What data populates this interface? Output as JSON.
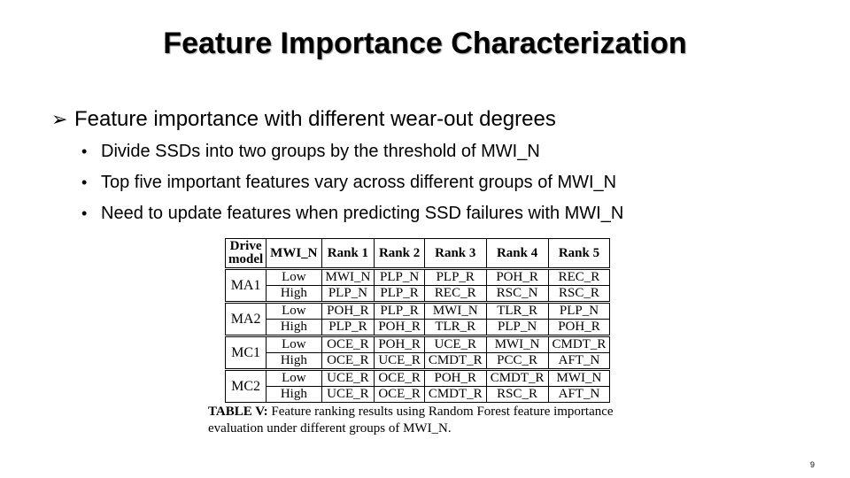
{
  "slide": {
    "title": "Feature Importance Characterization",
    "bullet": "Feature importance with different wear-out degrees",
    "bullet_icon": "arrow-bullet-icon",
    "sub_bullets": [
      "Divide SSDs into two groups by the threshold of MWI_N",
      "Top five important features vary across different groups of MWI_N",
      "Need to update features when predicting SSD failures with MWI_N"
    ],
    "page_number": "9"
  },
  "table": {
    "headers": {
      "drive_model_line1": "Drive",
      "drive_model_line2": "model",
      "mwi": "MWI_N",
      "ranks": [
        "Rank 1",
        "Rank 2",
        "Rank 3",
        "Rank 4",
        "Rank 5"
      ]
    },
    "groups": [
      {
        "model": "MA1",
        "rows": [
          {
            "level": "Low",
            "ranks": [
              "MWI_N",
              "PLP_N",
              "PLP_R",
              "POH_R",
              "REC_R"
            ]
          },
          {
            "level": "High",
            "ranks": [
              "PLP_N",
              "PLP_R",
              "REC_R",
              "RSC_N",
              "RSC_R"
            ]
          }
        ]
      },
      {
        "model": "MA2",
        "rows": [
          {
            "level": "Low",
            "ranks": [
              "POH_R",
              "PLP_R",
              "MWI_N",
              "TLR_R",
              "PLP_N"
            ]
          },
          {
            "level": "High",
            "ranks": [
              "PLP_R",
              "POH_R",
              "TLR_R",
              "PLP_N",
              "POH_R"
            ]
          }
        ]
      },
      {
        "model": "MC1",
        "rows": [
          {
            "level": "Low",
            "ranks": [
              "OCE_R",
              "POH_R",
              "UCE_R",
              "MWI_N",
              "CMDT_R"
            ]
          },
          {
            "level": "High",
            "ranks": [
              "OCE_R",
              "UCE_R",
              "CMDT_R",
              "PCC_R",
              "AFT_N"
            ]
          }
        ]
      },
      {
        "model": "MC2",
        "rows": [
          {
            "level": "Low",
            "ranks": [
              "UCE_R",
              "OCE_R",
              "POH_R",
              "CMDT_R",
              "MWI_N"
            ]
          },
          {
            "level": "High",
            "ranks": [
              "UCE_R",
              "OCE_R",
              "CMDT_R",
              "RSC_R",
              "AFT_N"
            ]
          }
        ]
      }
    ],
    "caption_label": "TABLE V:",
    "caption_text": "Feature ranking results using Random Forest feature importance evaluation under different groups of MWI_N."
  }
}
